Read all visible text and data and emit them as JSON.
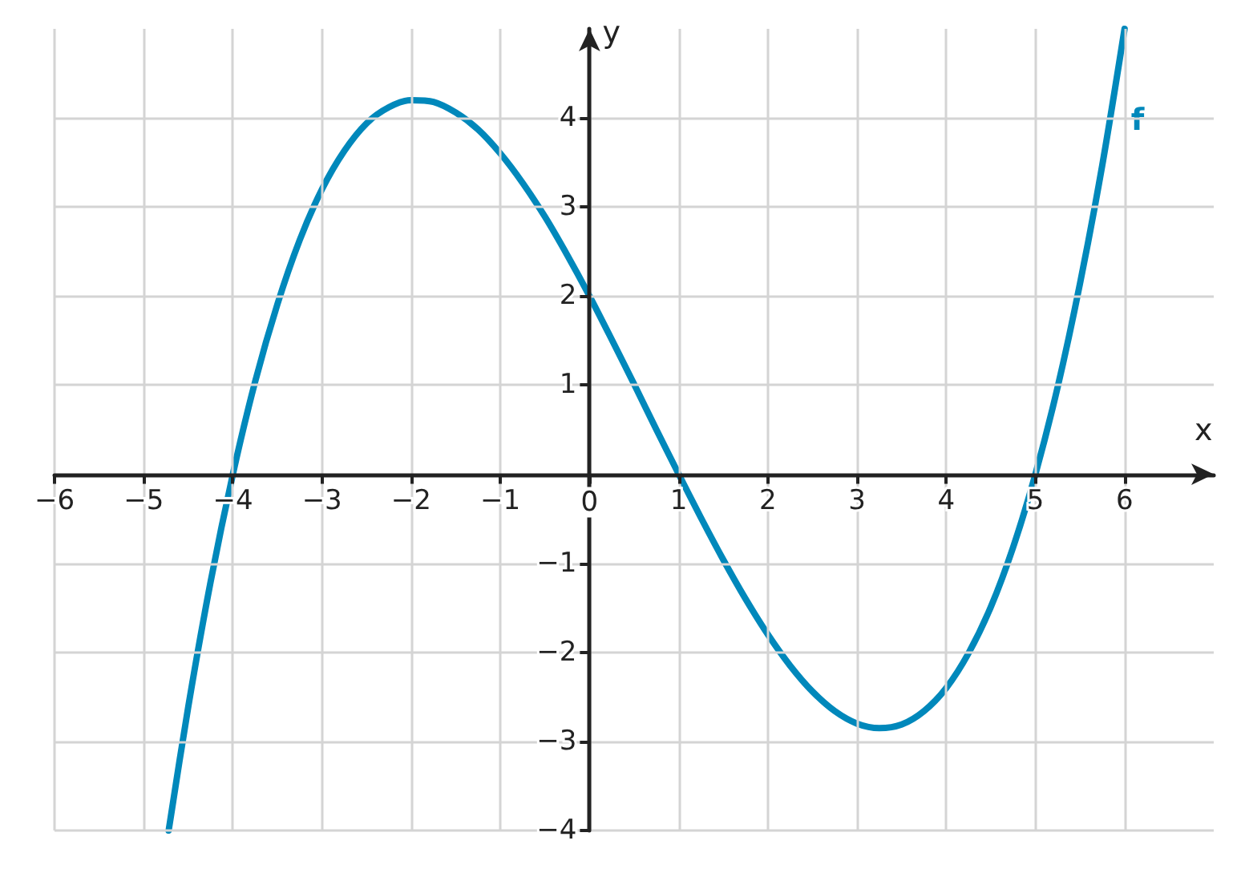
{
  "chart_data": {
    "type": "line",
    "xlabel": "x",
    "ylabel": "y",
    "xlim": [
      -6,
      7
    ],
    "ylim": [
      -4,
      5
    ],
    "xticks": [
      {
        "value": -6,
        "label": "−6"
      },
      {
        "value": -5,
        "label": "−5"
      },
      {
        "value": -4,
        "label": "−4"
      },
      {
        "value": -3,
        "label": "−3"
      },
      {
        "value": -2,
        "label": "−2"
      },
      {
        "value": -1,
        "label": "−1"
      },
      0,
      1,
      2,
      3,
      4,
      5,
      6
    ],
    "yticks": [
      {
        "value": -4,
        "label": "−4"
      },
      {
        "value": -3,
        "label": "−3"
      },
      {
        "value": -2,
        "label": "−2"
      },
      {
        "value": -1,
        "label": "−1"
      },
      1,
      2,
      3,
      4
    ],
    "grid": true,
    "legend": false,
    "marker": "none",
    "line_style": "solid",
    "series": [
      {
        "name": "f",
        "color": "#0088bb",
        "x": [
          -4.72,
          -4.5,
          -4.25,
          -4,
          -3.75,
          -3.5,
          -3.25,
          -3,
          -2.75,
          -2.5,
          -2.25,
          -2,
          -1.75,
          -1.5,
          -1.25,
          -1,
          -0.75,
          -0.5,
          -0.25,
          0,
          0.25,
          0.5,
          0.75,
          1,
          1.25,
          1.5,
          1.75,
          2,
          2.25,
          2.5,
          2.75,
          3,
          3.25,
          3.5,
          3.75,
          4,
          4.25,
          4.5,
          4.75,
          5,
          5.25,
          5.5,
          5.75,
          6
        ],
        "values": [
          -4,
          -2.61,
          -1.21,
          0,
          1.04,
          1.91,
          2.63,
          3.2,
          3.63,
          3.94,
          4.12,
          4.2,
          4.18,
          4.06,
          3.87,
          3.6,
          3.27,
          2.89,
          2.46,
          2,
          1.51,
          1.01,
          0.5,
          0,
          -0.49,
          -0.96,
          -1.4,
          -1.8,
          -2.15,
          -2.44,
          -2.66,
          -2.8,
          -2.85,
          -2.81,
          -2.66,
          -2.4,
          -2.01,
          -1.49,
          -0.82,
          0,
          0.98,
          2.14,
          3.47,
          5
        ]
      }
    ]
  }
}
